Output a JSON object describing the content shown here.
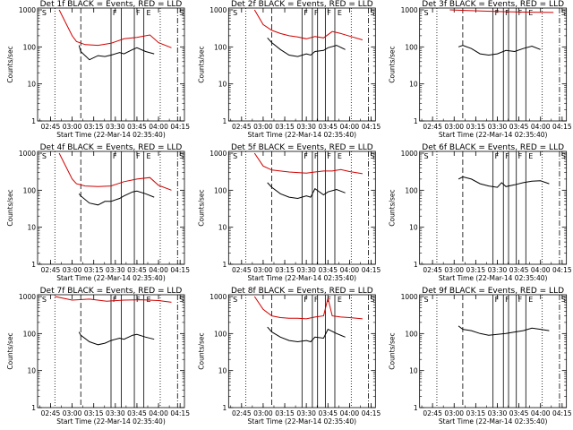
{
  "chart_data": [
    {
      "type": "line",
      "title": "Det 1f BLACK = Events, RED = LLD",
      "xlabel": "Start Time (22-Mar-14 02:35:40)",
      "ylabel": "Counts/sec",
      "x_ticks": [
        "02:45",
        "03:00",
        "03:15",
        "03:30",
        "03:45",
        "04:00",
        "04:15"
      ],
      "y_ticks": [
        "1",
        "10",
        "100",
        "1000"
      ],
      "ylim": [
        1,
        1000
      ],
      "y_scale": "log",
      "markers": [
        "S",
        "F",
        "F",
        "E",
        "S"
      ],
      "series": [
        {
          "color": "#d00000",
          "x": [
            2.85,
            3.0,
            3.05,
            3.15,
            3.3,
            3.45,
            3.6,
            3.75,
            3.9,
            4.0,
            4.15
          ],
          "y": [
            1000,
            200,
            140,
            115,
            110,
            125,
            165,
            180,
            210,
            130,
            95
          ]
        },
        {
          "color": "#000000",
          "x": [
            3.08,
            3.1,
            3.2,
            3.3,
            3.38,
            3.45,
            3.55,
            3.6,
            3.7,
            3.75,
            3.85,
            3.95
          ],
          "y": [
            110,
            75,
            45,
            58,
            55,
            60,
            70,
            65,
            85,
            95,
            75,
            65
          ]
        }
      ]
    },
    {
      "type": "line",
      "title": "Det 2f BLACK = Events, RED = LLD",
      "xlabel": "Start Time (22-Mar-14 02:35:40)",
      "ylabel": "Counts/sec",
      "x_ticks": [
        "02:45",
        "03:00",
        "03:15",
        "03:30",
        "03:45",
        "04:00",
        "04:15"
      ],
      "y_ticks": [
        "1",
        "10",
        "100",
        "1000"
      ],
      "ylim": [
        1,
        1000
      ],
      "y_scale": "log",
      "markers": [
        "S",
        "F",
        "F",
        "F",
        "E",
        "S"
      ],
      "series": [
        {
          "color": "#d00000",
          "x": [
            2.9,
            3.0,
            3.1,
            3.2,
            3.3,
            3.4,
            3.5,
            3.6,
            3.7,
            3.8,
            3.9,
            4.0,
            4.15
          ],
          "y": [
            1000,
            400,
            280,
            230,
            200,
            185,
            165,
            190,
            175,
            260,
            230,
            195,
            155
          ]
        },
        {
          "color": "#000000",
          "x": [
            3.05,
            3.1,
            3.2,
            3.3,
            3.4,
            3.5,
            3.55,
            3.6,
            3.7,
            3.75,
            3.85,
            3.95
          ],
          "y": [
            175,
            130,
            85,
            60,
            55,
            65,
            60,
            75,
            80,
            95,
            110,
            85
          ]
        }
      ]
    },
    {
      "type": "line",
      "title": "Det 3f BLACK = Events, RED = LLD",
      "xlabel": "Start Time (22-Mar-14 02:35:40)",
      "ylabel": "Counts/sec",
      "x_ticks": [
        "02:45",
        "03:00",
        "03:15",
        "03:30",
        "03:45",
        "04:00",
        "04:15"
      ],
      "y_ticks": [
        "1",
        "10",
        "100",
        "1000"
      ],
      "ylim": [
        1,
        1000
      ],
      "y_scale": "log",
      "markers": [
        "S",
        "F",
        "F",
        "F",
        "E",
        "S"
      ],
      "series": [
        {
          "color": "#d00000",
          "x": [
            2.95,
            3.2,
            3.5,
            3.8,
            4.0,
            4.15
          ],
          "y": [
            1000,
            950,
            900,
            870,
            860,
            850
          ]
        },
        {
          "color": "#000000",
          "x": [
            3.05,
            3.1,
            3.2,
            3.3,
            3.4,
            3.5,
            3.6,
            3.7,
            3.8,
            3.9,
            4.0
          ],
          "y": [
            100,
            110,
            90,
            65,
            60,
            65,
            80,
            75,
            90,
            105,
            85
          ]
        }
      ]
    },
    {
      "type": "line",
      "title": "Det 4f BLACK = Events, RED = LLD",
      "xlabel": "Start Time (22-Mar-14 02:35:40)",
      "ylabel": "Counts/sec",
      "x_ticks": [
        "02:45",
        "03:00",
        "03:15",
        "03:30",
        "03:45",
        "04:00",
        "04:15"
      ],
      "y_ticks": [
        "1",
        "10",
        "100",
        "1000"
      ],
      "ylim": [
        1,
        1000
      ],
      "y_scale": "log",
      "markers": [
        "S",
        "F",
        "F",
        "E",
        "S"
      ],
      "series": [
        {
          "color": "#d00000",
          "x": [
            2.85,
            3.0,
            3.05,
            3.15,
            3.3,
            3.45,
            3.6,
            3.75,
            3.9,
            4.0,
            4.15
          ],
          "y": [
            1000,
            200,
            150,
            130,
            125,
            130,
            170,
            200,
            220,
            135,
            100
          ]
        },
        {
          "color": "#000000",
          "x": [
            3.08,
            3.1,
            3.2,
            3.3,
            3.38,
            3.45,
            3.55,
            3.6,
            3.7,
            3.75,
            3.85,
            3.95
          ],
          "y": [
            80,
            70,
            45,
            40,
            50,
            50,
            60,
            70,
            90,
            95,
            80,
            65
          ]
        }
      ]
    },
    {
      "type": "line",
      "title": "Det 5f BLACK = Events, RED = LLD",
      "xlabel": "Start Time (22-Mar-14 02:35:40)",
      "ylabel": "Counts/sec",
      "x_ticks": [
        "02:45",
        "03:00",
        "03:15",
        "03:30",
        "03:45",
        "04:00",
        "04:15"
      ],
      "y_ticks": [
        "1",
        "10",
        "100",
        "1000"
      ],
      "ylim": [
        1,
        1000
      ],
      "y_scale": "log",
      "markers": [
        "S",
        "F",
        "F",
        "F",
        "E",
        "S"
      ],
      "series": [
        {
          "color": "#d00000",
          "x": [
            2.9,
            3.0,
            3.1,
            3.2,
            3.3,
            3.4,
            3.5,
            3.6,
            3.7,
            3.8,
            3.9,
            4.0,
            4.15
          ],
          "y": [
            1000,
            450,
            350,
            330,
            310,
            300,
            290,
            310,
            330,
            330,
            360,
            320,
            280
          ]
        },
        {
          "color": "#000000",
          "x": [
            3.05,
            3.1,
            3.2,
            3.3,
            3.4,
            3.5,
            3.55,
            3.6,
            3.7,
            3.75,
            3.85,
            3.95
          ],
          "y": [
            160,
            120,
            80,
            65,
            60,
            70,
            65,
            110,
            75,
            90,
            105,
            85
          ]
        }
      ]
    },
    {
      "type": "line",
      "title": "Det 6f BLACK = Events, RED = LLD",
      "xlabel": "Start Time (22-Mar-14 02:35:40)",
      "ylabel": "Counts/sec",
      "x_ticks": [
        "02:45",
        "03:00",
        "03:15",
        "03:30",
        "03:45",
        "04:00",
        "04:15"
      ],
      "y_ticks": [
        "1",
        "10",
        "100",
        "1000"
      ],
      "ylim": [
        1,
        1000
      ],
      "y_scale": "log",
      "markers": [
        "S",
        "F",
        "F",
        "F",
        "E",
        "S"
      ],
      "series": [
        {
          "color": "#000000",
          "x": [
            3.05,
            3.1,
            3.2,
            3.3,
            3.4,
            3.5,
            3.55,
            3.6,
            3.7,
            3.8,
            3.9,
            4.0,
            4.1
          ],
          "y": [
            200,
            230,
            200,
            150,
            130,
            120,
            160,
            125,
            140,
            160,
            175,
            180,
            150
          ]
        }
      ]
    },
    {
      "type": "line",
      "title": "Det 7f BLACK = Events, RED = LLD",
      "xlabel": "Start Time (22-Mar-14 02:35:40)",
      "ylabel": "Counts/sec",
      "x_ticks": [
        "02:45",
        "03:00",
        "03:15",
        "03:30",
        "03:45",
        "04:00",
        "04:15"
      ],
      "y_ticks": [
        "1",
        "10",
        "100",
        "1000"
      ],
      "ylim": [
        1,
        1000
      ],
      "y_scale": "log",
      "markers": [
        "S",
        "F",
        "F",
        "E",
        "S"
      ],
      "series": [
        {
          "color": "#d00000",
          "x": [
            2.8,
            3.0,
            3.2,
            3.4,
            3.6,
            3.8,
            4.0,
            4.15
          ],
          "y": [
            1000,
            800,
            850,
            750,
            800,
            820,
            780,
            700
          ]
        },
        {
          "color": "#000000",
          "x": [
            3.08,
            3.1,
            3.2,
            3.3,
            3.38,
            3.45,
            3.55,
            3.6,
            3.7,
            3.75,
            3.85,
            3.95
          ],
          "y": [
            110,
            90,
            60,
            50,
            55,
            65,
            75,
            70,
            90,
            95,
            80,
            70
          ]
        }
      ]
    },
    {
      "type": "line",
      "title": "Det 8f BLACK = Events, RED = LLD",
      "xlabel": "Start Time (22-Mar-14 02:35:40)",
      "ylabel": "Counts/sec",
      "x_ticks": [
        "02:45",
        "03:00",
        "03:15",
        "03:30",
        "03:45",
        "04:00",
        "04:15"
      ],
      "y_ticks": [
        "1",
        "10",
        "100",
        "1000"
      ],
      "ylim": [
        1,
        1000
      ],
      "y_scale": "log",
      "markers": [
        "S",
        "F",
        "F",
        "F",
        "E",
        "S"
      ],
      "series": [
        {
          "color": "#d00000",
          "x": [
            2.9,
            3.0,
            3.1,
            3.2,
            3.3,
            3.4,
            3.5,
            3.6,
            3.7,
            3.75,
            3.8,
            3.9,
            4.0,
            4.15
          ],
          "y": [
            1000,
            450,
            300,
            270,
            260,
            260,
            250,
            280,
            300,
            900,
            300,
            280,
            270,
            250
          ]
        },
        {
          "color": "#000000",
          "x": [
            3.05,
            3.1,
            3.2,
            3.3,
            3.4,
            3.5,
            3.55,
            3.6,
            3.7,
            3.75,
            3.85,
            3.95
          ],
          "y": [
            150,
            110,
            80,
            65,
            60,
            65,
            60,
            80,
            75,
            130,
            100,
            80
          ]
        }
      ]
    },
    {
      "type": "line",
      "title": "Det 9f BLACK = Events, RED = LLD",
      "xlabel": "Start Time (22-Mar-14 02:35:40)",
      "ylabel": "Counts/sec",
      "x_ticks": [
        "02:45",
        "03:00",
        "03:15",
        "03:30",
        "03:45",
        "04:00",
        "04:15"
      ],
      "y_ticks": [
        "1",
        "10",
        "100",
        "1000"
      ],
      "ylim": [
        1,
        1000
      ],
      "y_scale": "log",
      "markers": [
        "S",
        "F",
        "F",
        "F",
        "E",
        "S"
      ],
      "series": [
        {
          "color": "#000000",
          "x": [
            3.05,
            3.1,
            3.2,
            3.3,
            3.4,
            3.5,
            3.6,
            3.7,
            3.8,
            3.9,
            4.0,
            4.1
          ],
          "y": [
            160,
            130,
            120,
            100,
            90,
            95,
            100,
            110,
            120,
            140,
            130,
            120
          ]
        }
      ]
    }
  ]
}
